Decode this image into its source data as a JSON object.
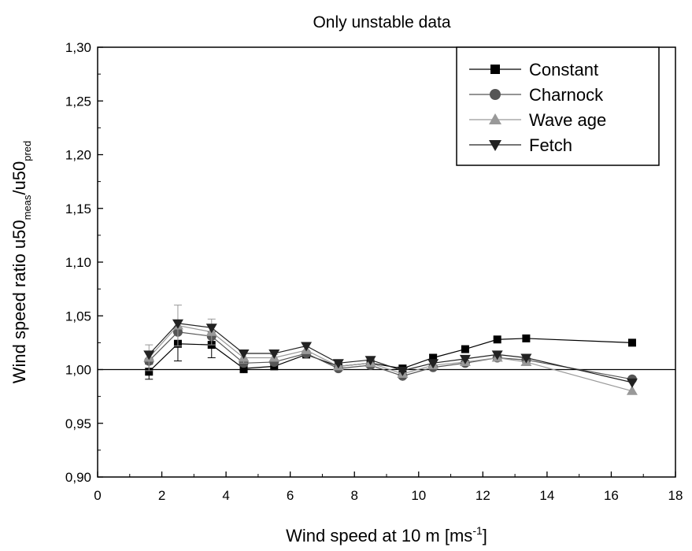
{
  "chart_data": {
    "type": "line",
    "title": "Only unstable data",
    "xlabel": {
      "text": "Wind speed at 10 m [ms",
      "sup": "-1",
      "close": "]"
    },
    "ylabel": {
      "base": "Wind speed ratio u50",
      "sub1": "meas",
      "mid": "/u50",
      "sub2": "pred"
    },
    "xlim": [
      0,
      18
    ],
    "ylim": [
      0.9,
      1.3
    ],
    "xticks": [
      0,
      2,
      4,
      6,
      8,
      10,
      12,
      14,
      16,
      18
    ],
    "xtick_labels": [
      "0",
      "2",
      "4",
      "6",
      "8",
      "10",
      "12",
      "14",
      "16",
      "18"
    ],
    "yticks": [
      0.9,
      0.95,
      1.0,
      1.05,
      1.1,
      1.15,
      1.2,
      1.25,
      1.3
    ],
    "ytick_labels": [
      "0,90",
      "0,95",
      "1,00",
      "1,05",
      "1,10",
      "1,15",
      "1,20",
      "1,25",
      "1,30"
    ],
    "reference_line": 1.0,
    "legend_position": "top-right",
    "x": [
      1.6,
      2.5,
      3.55,
      4.55,
      5.5,
      6.5,
      7.5,
      8.5,
      9.5,
      10.45,
      11.45,
      12.45,
      13.35,
      16.65
    ],
    "series": [
      {
        "name": "Constant",
        "marker": "square",
        "color": "#000000",
        "values": [
          0.998,
          1.024,
          1.023,
          1.001,
          1.003,
          1.014,
          1.003,
          1.006,
          1.001,
          1.011,
          1.019,
          1.028,
          1.029,
          1.025
        ],
        "errors": [
          0.007,
          0.016,
          0.012,
          0.004,
          0.003,
          0.003,
          0.003,
          0.003,
          0.003,
          0.003,
          0,
          0,
          0,
          0
        ]
      },
      {
        "name": "Charnock",
        "marker": "circle",
        "color": "#555555",
        "values": [
          1.008,
          1.035,
          1.031,
          1.006,
          1.007,
          1.015,
          1.001,
          1.004,
          0.994,
          1.002,
          1.006,
          1.011,
          1.009,
          0.991
        ],
        "errors": [
          0,
          0,
          0,
          0,
          0,
          0,
          0,
          0,
          0,
          0,
          0,
          0,
          0,
          0
        ]
      },
      {
        "name": "Wave age",
        "marker": "triangle-up",
        "color": "#999999",
        "values": [
          1.011,
          1.041,
          1.035,
          1.011,
          1.011,
          1.018,
          1.003,
          1.006,
          0.996,
          1.004,
          1.007,
          1.011,
          1.007,
          0.98
        ],
        "errors": [
          0.012,
          0.019,
          0.012,
          0.005,
          0.003,
          0.003,
          0.003,
          0.003,
          0.003,
          0.003,
          0,
          0,
          0,
          0
        ]
      },
      {
        "name": "Fetch",
        "marker": "triangle-down",
        "color": "#222222",
        "values": [
          1.014,
          1.043,
          1.039,
          1.015,
          1.015,
          1.022,
          1.006,
          1.009,
          0.999,
          1.006,
          1.01,
          1.014,
          1.011,
          0.988
        ],
        "errors": [
          0,
          0,
          0,
          0,
          0,
          0,
          0,
          0,
          0,
          0,
          0,
          0,
          0,
          0
        ]
      }
    ]
  }
}
